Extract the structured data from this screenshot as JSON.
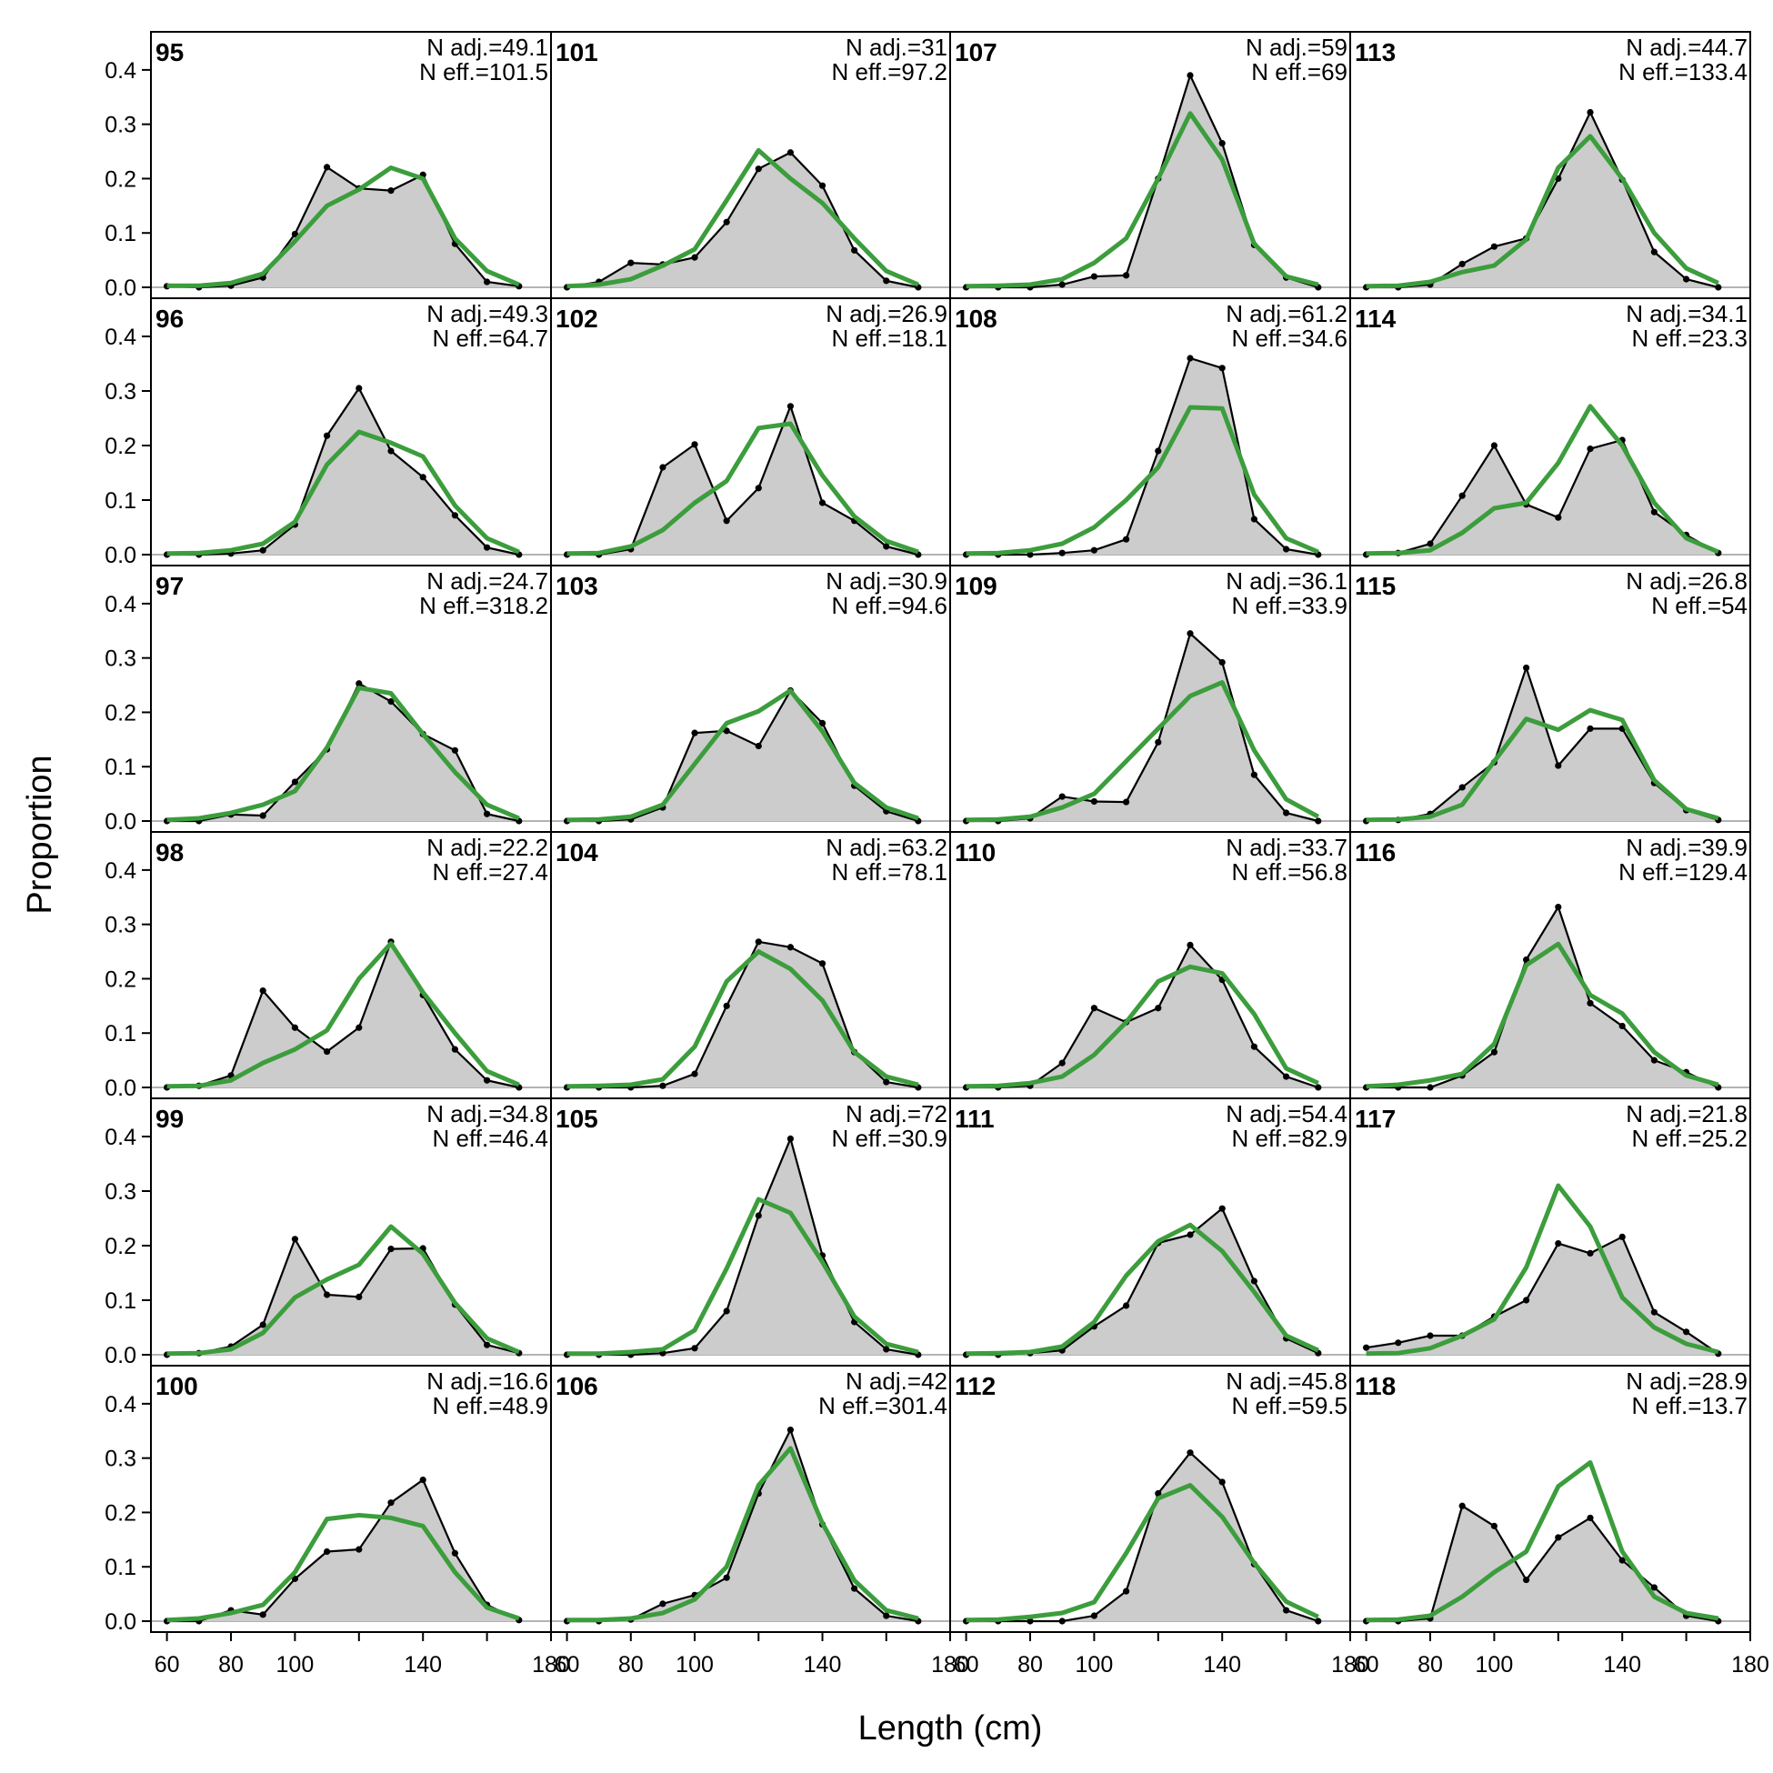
{
  "chart_data": {
    "type": "area",
    "xlabel": "Length (cm)",
    "ylabel": "Proportion",
    "xlim": [
      55,
      180
    ],
    "ylim": [
      0,
      0.45
    ],
    "x_ticks": [
      "60",
      "80",
      "100",
      "140",
      "180"
    ],
    "x_tick_values": [
      60,
      80,
      100,
      140,
      180
    ],
    "y_ticks": [
      "0.0",
      "0.1",
      "0.2",
      "0.3",
      "0.4"
    ],
    "y_tick_values": [
      0.0,
      0.1,
      0.2,
      0.3,
      0.4
    ],
    "x": [
      60,
      70,
      80,
      90,
      100,
      110,
      120,
      130,
      140,
      150,
      160,
      170
    ],
    "colors": {
      "observed_fill": "#cccccc",
      "observed_line": "#000000",
      "expected_line": "#3c9d3c",
      "zero_line": "#b3b3b3"
    },
    "layout": {
      "rows": 6,
      "cols": 4,
      "order": "column-major"
    },
    "panels": [
      {
        "year": "95",
        "n_adj": "N adj.=49.1",
        "n_eff": "N eff.=101.5",
        "observed": [
          0.002,
          0.0,
          0.003,
          0.018,
          0.098,
          0.221,
          0.182,
          0.178,
          0.207,
          0.08,
          0.01,
          0.002
        ],
        "expected": [
          0.003,
          0.003,
          0.008,
          0.025,
          0.085,
          0.15,
          0.18,
          0.22,
          0.2,
          0.09,
          0.03,
          0.005
        ]
      },
      {
        "year": "96",
        "n_adj": "N adj.=49.3",
        "n_eff": "N eff.=64.7",
        "observed": [
          0.0,
          0.0,
          0.002,
          0.008,
          0.055,
          0.218,
          0.305,
          0.19,
          0.142,
          0.072,
          0.013,
          0.0
        ],
        "expected": [
          0.002,
          0.003,
          0.008,
          0.02,
          0.06,
          0.165,
          0.225,
          0.205,
          0.18,
          0.09,
          0.03,
          0.005
        ]
      },
      {
        "year": "97",
        "n_adj": "N adj.=24.7",
        "n_eff": "N eff.=318.2",
        "observed": [
          0.0,
          0.0,
          0.012,
          0.01,
          0.072,
          0.132,
          0.253,
          0.22,
          0.16,
          0.13,
          0.013,
          0.0
        ],
        "expected": [
          0.002,
          0.005,
          0.015,
          0.03,
          0.055,
          0.135,
          0.245,
          0.235,
          0.16,
          0.09,
          0.03,
          0.005
        ]
      },
      {
        "year": "98",
        "n_adj": "N adj.=22.2",
        "n_eff": "N eff.=27.4",
        "observed": [
          0.0,
          0.003,
          0.022,
          0.178,
          0.11,
          0.066,
          0.11,
          0.268,
          0.17,
          0.07,
          0.013,
          0.0
        ],
        "expected": [
          0.002,
          0.003,
          0.013,
          0.045,
          0.07,
          0.105,
          0.2,
          0.265,
          0.175,
          0.1,
          0.03,
          0.005
        ]
      },
      {
        "year": "99",
        "n_adj": "N adj.=34.8",
        "n_eff": "N eff.=46.4",
        "observed": [
          0.0,
          0.003,
          0.015,
          0.055,
          0.212,
          0.11,
          0.106,
          0.194,
          0.195,
          0.092,
          0.018,
          0.003
        ],
        "expected": [
          0.002,
          0.003,
          0.01,
          0.04,
          0.105,
          0.138,
          0.165,
          0.235,
          0.185,
          0.095,
          0.03,
          0.005
        ]
      },
      {
        "year": "100",
        "n_adj": "N adj.=16.6",
        "n_eff": "N eff.=48.9",
        "observed": [
          0.0,
          0.0,
          0.02,
          0.012,
          0.078,
          0.128,
          0.132,
          0.218,
          0.26,
          0.125,
          0.03,
          0.002
        ],
        "expected": [
          0.002,
          0.005,
          0.015,
          0.03,
          0.09,
          0.188,
          0.195,
          0.19,
          0.175,
          0.09,
          0.025,
          0.005
        ]
      },
      {
        "year": "101",
        "n_adj": "N adj.=31",
        "n_eff": "N eff.=97.2",
        "observed": [
          0.0,
          0.01,
          0.045,
          0.042,
          0.055,
          0.12,
          0.218,
          0.248,
          0.187,
          0.068,
          0.012,
          0.0
        ],
        "expected": [
          0.002,
          0.005,
          0.015,
          0.04,
          0.07,
          0.16,
          0.252,
          0.2,
          0.155,
          0.09,
          0.03,
          0.005
        ]
      },
      {
        "year": "102",
        "n_adj": "N adj.=26.9",
        "n_eff": "N eff.=18.1",
        "observed": [
          0.0,
          0.0,
          0.01,
          0.16,
          0.202,
          0.062,
          0.122,
          0.272,
          0.095,
          0.062,
          0.015,
          0.0
        ],
        "expected": [
          0.002,
          0.003,
          0.015,
          0.045,
          0.095,
          0.135,
          0.232,
          0.24,
          0.145,
          0.07,
          0.025,
          0.005
        ]
      },
      {
        "year": "103",
        "n_adj": "N adj.=30.9",
        "n_eff": "N eff.=94.6",
        "observed": [
          0.0,
          0.0,
          0.003,
          0.025,
          0.162,
          0.166,
          0.138,
          0.24,
          0.18,
          0.065,
          0.018,
          0.0
        ],
        "expected": [
          0.002,
          0.003,
          0.008,
          0.03,
          0.105,
          0.18,
          0.202,
          0.24,
          0.165,
          0.07,
          0.025,
          0.005
        ]
      },
      {
        "year": "104",
        "n_adj": "N adj.=63.2",
        "n_eff": "N eff.=78.1",
        "observed": [
          0.0,
          0.0,
          0.0,
          0.003,
          0.025,
          0.15,
          0.268,
          0.258,
          0.228,
          0.065,
          0.01,
          0.0
        ],
        "expected": [
          0.002,
          0.003,
          0.005,
          0.015,
          0.075,
          0.195,
          0.25,
          0.218,
          0.16,
          0.065,
          0.02,
          0.005
        ]
      },
      {
        "year": "105",
        "n_adj": "N adj.=72",
        "n_eff": "N eff.=30.9",
        "observed": [
          0.0,
          0.0,
          0.0,
          0.003,
          0.012,
          0.08,
          0.255,
          0.396,
          0.182,
          0.06,
          0.01,
          0.0
        ],
        "expected": [
          0.002,
          0.002,
          0.005,
          0.01,
          0.045,
          0.158,
          0.285,
          0.26,
          0.17,
          0.07,
          0.02,
          0.005
        ]
      },
      {
        "year": "106",
        "n_adj": "N adj.=42",
        "n_eff": "N eff.=301.4",
        "observed": [
          0.0,
          0.0,
          0.003,
          0.032,
          0.048,
          0.08,
          0.235,
          0.352,
          0.178,
          0.06,
          0.01,
          0.0
        ],
        "expected": [
          0.002,
          0.002,
          0.005,
          0.015,
          0.04,
          0.1,
          0.25,
          0.318,
          0.18,
          0.075,
          0.02,
          0.005
        ]
      },
      {
        "year": "107",
        "n_adj": "N adj.=59",
        "n_eff": "N eff.=69",
        "observed": [
          0.0,
          0.0,
          0.0,
          0.005,
          0.02,
          0.022,
          0.2,
          0.39,
          0.265,
          0.078,
          0.018,
          0.0
        ],
        "expected": [
          0.002,
          0.003,
          0.005,
          0.015,
          0.045,
          0.09,
          0.2,
          0.32,
          0.235,
          0.08,
          0.02,
          0.005
        ]
      },
      {
        "year": "108",
        "n_adj": "N adj.=61.2",
        "n_eff": "N eff.=34.6",
        "observed": [
          0.0,
          0.0,
          0.0,
          0.003,
          0.008,
          0.028,
          0.19,
          0.36,
          0.342,
          0.065,
          0.01,
          0.0
        ],
        "expected": [
          0.002,
          0.003,
          0.008,
          0.02,
          0.05,
          0.1,
          0.16,
          0.27,
          0.268,
          0.11,
          0.03,
          0.005
        ]
      },
      {
        "year": "109",
        "n_adj": "N adj.=36.1",
        "n_eff": "N eff.=33.9",
        "observed": [
          0.0,
          0.0,
          0.005,
          0.045,
          0.036,
          0.035,
          0.145,
          0.345,
          0.292,
          0.085,
          0.015,
          0.0
        ],
        "expected": [
          0.002,
          0.003,
          0.008,
          0.025,
          0.05,
          0.11,
          0.17,
          0.23,
          0.255,
          0.13,
          0.04,
          0.008
        ]
      },
      {
        "year": "110",
        "n_adj": "N adj.=33.7",
        "n_eff": "N eff.=56.8",
        "observed": [
          0.0,
          0.0,
          0.003,
          0.045,
          0.146,
          0.12,
          0.146,
          0.262,
          0.198,
          0.075,
          0.02,
          0.0
        ],
        "expected": [
          0.002,
          0.003,
          0.008,
          0.02,
          0.06,
          0.12,
          0.195,
          0.222,
          0.21,
          0.135,
          0.035,
          0.008
        ]
      },
      {
        "year": "111",
        "n_adj": "N adj.=54.4",
        "n_eff": "N eff.=82.9",
        "observed": [
          0.0,
          0.0,
          0.003,
          0.008,
          0.052,
          0.09,
          0.205,
          0.22,
          0.268,
          0.135,
          0.03,
          0.003
        ],
        "expected": [
          0.002,
          0.003,
          0.005,
          0.015,
          0.06,
          0.145,
          0.208,
          0.238,
          0.19,
          0.115,
          0.035,
          0.008
        ]
      },
      {
        "year": "112",
        "n_adj": "N adj.=45.8",
        "n_eff": "N eff.=59.5",
        "observed": [
          0.0,
          0.0,
          0.0,
          0.0,
          0.01,
          0.055,
          0.235,
          0.31,
          0.256,
          0.105,
          0.02,
          0.0
        ],
        "expected": [
          0.002,
          0.003,
          0.008,
          0.015,
          0.035,
          0.125,
          0.226,
          0.25,
          0.192,
          0.107,
          0.036,
          0.008
        ]
      },
      {
        "year": "113",
        "n_adj": "N adj.=44.7",
        "n_eff": "N eff.=133.4",
        "observed": [
          0.0,
          0.0,
          0.005,
          0.043,
          0.075,
          0.09,
          0.2,
          0.322,
          0.198,
          0.065,
          0.015,
          0.0
        ],
        "expected": [
          0.002,
          0.003,
          0.01,
          0.028,
          0.04,
          0.088,
          0.22,
          0.278,
          0.2,
          0.1,
          0.035,
          0.008
        ]
      },
      {
        "year": "114",
        "n_adj": "N adj.=34.1",
        "n_eff": "N eff.=23.3",
        "observed": [
          0.0,
          0.003,
          0.02,
          0.108,
          0.2,
          0.092,
          0.068,
          0.194,
          0.21,
          0.078,
          0.036,
          0.003
        ],
        "expected": [
          0.002,
          0.003,
          0.008,
          0.04,
          0.085,
          0.095,
          0.168,
          0.272,
          0.2,
          0.095,
          0.03,
          0.005
        ]
      },
      {
        "year": "115",
        "n_adj": "N adj.=26.8",
        "n_eff": "N eff.=54",
        "observed": [
          0.0,
          0.002,
          0.013,
          0.062,
          0.108,
          0.282,
          0.102,
          0.17,
          0.17,
          0.07,
          0.02,
          0.002
        ],
        "expected": [
          0.002,
          0.003,
          0.008,
          0.03,
          0.11,
          0.188,
          0.168,
          0.204,
          0.186,
          0.075,
          0.022,
          0.005
        ]
      },
      {
        "year": "116",
        "n_adj": "N adj.=39.9",
        "n_eff": "N eff.=129.4",
        "observed": [
          0.0,
          0.0,
          0.0,
          0.022,
          0.065,
          0.235,
          0.332,
          0.155,
          0.113,
          0.05,
          0.028,
          0.0
        ],
        "expected": [
          0.002,
          0.005,
          0.013,
          0.025,
          0.08,
          0.225,
          0.264,
          0.17,
          0.136,
          0.065,
          0.022,
          0.005
        ]
      },
      {
        "year": "117",
        "n_adj": "N adj.=21.8",
        "n_eff": "N eff.=25.2",
        "observed": [
          0.013,
          0.022,
          0.035,
          0.035,
          0.07,
          0.1,
          0.204,
          0.186,
          0.216,
          0.078,
          0.042,
          0.002
        ],
        "expected": [
          0.002,
          0.003,
          0.012,
          0.035,
          0.065,
          0.16,
          0.31,
          0.235,
          0.105,
          0.05,
          0.02,
          0.005
        ]
      },
      {
        "year": "118",
        "n_adj": "N adj.=28.9",
        "n_eff": "N eff.=13.7",
        "observed": [
          0.0,
          0.0,
          0.005,
          0.212,
          0.175,
          0.076,
          0.154,
          0.19,
          0.112,
          0.062,
          0.01,
          0.0
        ],
        "expected": [
          0.002,
          0.003,
          0.01,
          0.045,
          0.09,
          0.128,
          0.248,
          0.292,
          0.128,
          0.045,
          0.015,
          0.005
        ]
      }
    ]
  }
}
